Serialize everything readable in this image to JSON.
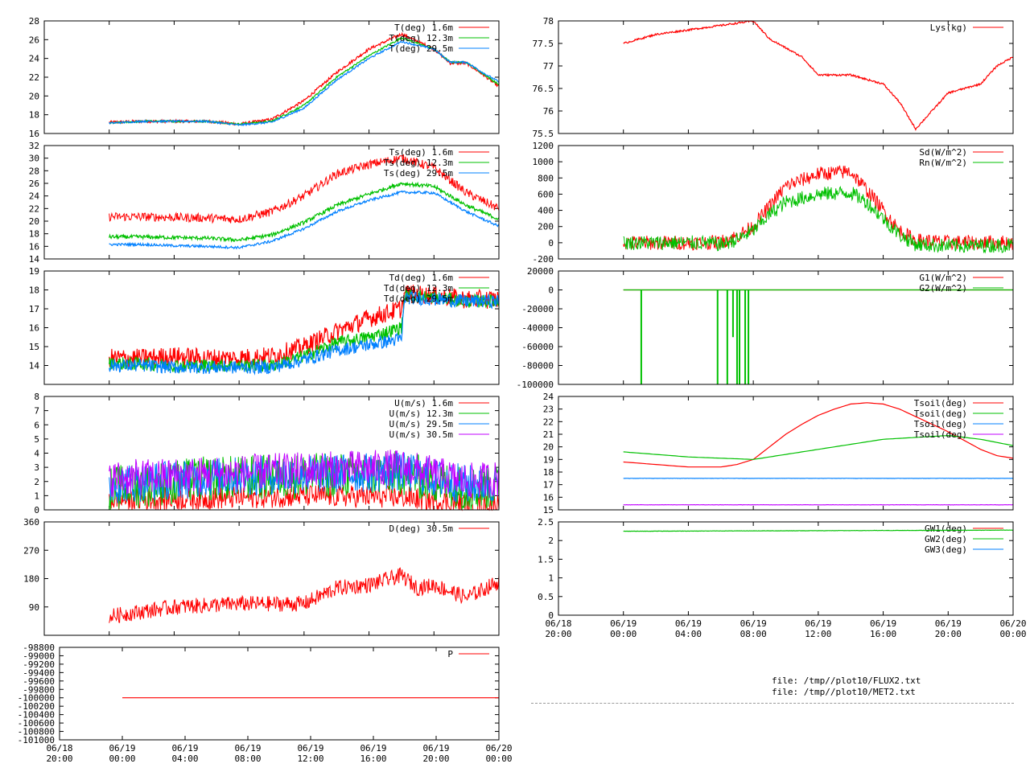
{
  "colors": {
    "red": "#ff0000",
    "green": "#00c000",
    "blue": "#0080ff",
    "purple": "#c000ff",
    "frame": "#000000"
  },
  "footer": {
    "line1": "file: /tmp//plot10/FLUX2.txt",
    "line2": "file: /tmp//plot10/MET2.txt"
  },
  "chart_data": [
    {
      "id": "air-temperature",
      "type": "line",
      "x_range_hours": [
        0,
        28
      ],
      "x_ticks": [],
      "ylim": [
        16,
        28
      ],
      "yticks": [
        "16",
        "18",
        "20",
        "22",
        "24",
        "26",
        "28"
      ],
      "series": [
        {
          "name": "T(deg)  1.6m",
          "color": "red",
          "noise": 0.15,
          "x": [
            4,
            6,
            8,
            10,
            12,
            14,
            16,
            18,
            20,
            22,
            24,
            25,
            26,
            27,
            28
          ],
          "y": [
            17.2,
            17.3,
            17.3,
            17.3,
            17.0,
            17.5,
            19.5,
            22.5,
            25.0,
            26.6,
            25.0,
            23.5,
            23.5,
            22.3,
            21.0
          ],
          "x2": [],
          "y2": []
        },
        {
          "name": "T(deg) 12.3m",
          "color": "green",
          "noise": 0.1,
          "x": [
            4,
            6,
            8,
            10,
            12,
            14,
            16,
            18,
            20,
            22,
            24,
            25,
            26,
            27,
            28
          ],
          "y": [
            17.1,
            17.3,
            17.3,
            17.3,
            17.0,
            17.3,
            19.0,
            22.0,
            24.3,
            26.2,
            25.0,
            23.6,
            23.6,
            22.4,
            21.2
          ],
          "x2": [],
          "y2": []
        },
        {
          "name": "T(deg) 29.5m",
          "color": "blue",
          "noise": 0.1,
          "x": [
            4,
            6,
            8,
            10,
            12,
            14,
            16,
            18,
            20,
            22,
            24,
            25,
            26,
            27,
            28
          ],
          "y": [
            17.1,
            17.3,
            17.3,
            17.3,
            16.9,
            17.2,
            18.7,
            21.7,
            24.0,
            25.8,
            25.0,
            23.6,
            23.6,
            22.5,
            21.5
          ],
          "x2": [],
          "y2": []
        }
      ]
    },
    {
      "id": "surface-temperature",
      "type": "line",
      "x_range_hours": [
        0,
        28
      ],
      "x_ticks": [],
      "ylim": [
        14,
        32
      ],
      "yticks": [
        "14",
        "16",
        "18",
        "20",
        "22",
        "24",
        "26",
        "28",
        "30",
        "32"
      ],
      "series": [
        {
          "name": "Ts(deg)  1.6m",
          "color": "red",
          "noise": 0.7,
          "x": [
            4,
            6,
            8,
            10,
            12,
            14,
            16,
            18,
            20,
            22,
            24,
            26,
            28
          ],
          "y": [
            20.7,
            20.7,
            20.6,
            20.5,
            20.3,
            21.5,
            24.0,
            27.5,
            29.0,
            30.0,
            28.5,
            24.5,
            22.0
          ],
          "x2": [],
          "y2": []
        },
        {
          "name": "Ts(deg) 12.3m",
          "color": "green",
          "noise": 0.3,
          "x": [
            4,
            6,
            8,
            10,
            12,
            14,
            16,
            18,
            20,
            22,
            24,
            26,
            28
          ],
          "y": [
            17.5,
            17.5,
            17.4,
            17.3,
            17.0,
            17.8,
            19.8,
            22.5,
            24.3,
            26.0,
            25.5,
            22.5,
            20.3
          ],
          "x2": [],
          "y2": []
        },
        {
          "name": "Ts(deg) 29.5m",
          "color": "blue",
          "noise": 0.2,
          "x": [
            4,
            6,
            8,
            10,
            12,
            14,
            16,
            18,
            20,
            22,
            24,
            26,
            28
          ],
          "y": [
            16.3,
            16.3,
            16.1,
            16.0,
            15.8,
            16.8,
            18.8,
            21.5,
            23.3,
            24.6,
            24.5,
            21.5,
            19.2
          ],
          "x2": [],
          "y2": []
        }
      ]
    },
    {
      "id": "dewpoint",
      "type": "line",
      "x_range_hours": [
        0,
        28
      ],
      "x_ticks": [],
      "ylim": [
        13,
        19
      ],
      "yticks": [
        "14",
        "15",
        "16",
        "17",
        "18",
        "19"
      ],
      "series": [
        {
          "name": "Td(deg)  1.6m",
          "color": "red",
          "noise": 0.5,
          "x": [
            4,
            6,
            8,
            10,
            12,
            14,
            16,
            18,
            20,
            22,
            22.2,
            24,
            26,
            28
          ],
          "y": [
            14.4,
            14.4,
            14.5,
            14.4,
            14.4,
            14.5,
            15.0,
            15.8,
            16.5,
            17.0,
            17.8,
            17.7,
            17.5,
            17.5
          ],
          "x2": [],
          "y2": []
        },
        {
          "name": "Td(deg) 12.3m",
          "color": "green",
          "noise": 0.35,
          "x": [
            4,
            6,
            8,
            10,
            12,
            14,
            16,
            18,
            20,
            22,
            22.2,
            24,
            26,
            28
          ],
          "y": [
            14.1,
            14.1,
            14.0,
            14.0,
            14.0,
            14.0,
            14.5,
            15.2,
            15.5,
            16.0,
            17.7,
            17.6,
            17.4,
            17.4
          ],
          "x2": [],
          "y2": []
        },
        {
          "name": "Td(deg) 29.5m",
          "color": "blue",
          "noise": 0.35,
          "x": [
            4,
            6,
            8,
            10,
            12,
            14,
            16,
            18,
            20,
            22,
            22.2,
            24,
            26,
            28
          ],
          "y": [
            14.0,
            14.0,
            13.9,
            13.9,
            13.9,
            13.9,
            14.3,
            14.8,
            15.1,
            15.4,
            17.6,
            17.5,
            17.4,
            17.4
          ],
          "x2": [],
          "y2": []
        }
      ]
    },
    {
      "id": "wind-speed",
      "type": "line",
      "x_range_hours": [
        0,
        28
      ],
      "x_ticks": [],
      "ylim": [
        0,
        8
      ],
      "yticks": [
        "0",
        "1",
        "2",
        "3",
        "4",
        "5",
        "6",
        "7",
        "8"
      ],
      "series": [
        {
          "name": "U(m/s)  1.6m",
          "color": "red",
          "noise": 0.8,
          "x": [
            4,
            10,
            16,
            22,
            26,
            28
          ],
          "y": [
            0.7,
            0.8,
            1.0,
            0.9,
            0.4,
            0.4
          ],
          "x2": [],
          "y2": []
        },
        {
          "name": "U(m/s) 12.3m",
          "color": "green",
          "noise": 1.6,
          "x": [
            4,
            10,
            16,
            22,
            26,
            28
          ],
          "y": [
            1.5,
            2.2,
            2.4,
            2.6,
            1.5,
            1.6
          ],
          "x2": [],
          "y2": []
        },
        {
          "name": "U(m/s) 29.5m",
          "color": "blue",
          "noise": 1.4,
          "x": [
            4,
            10,
            16,
            22,
            26,
            28
          ],
          "y": [
            1.8,
            2.3,
            2.5,
            2.7,
            1.8,
            1.9
          ],
          "x2": [],
          "y2": []
        },
        {
          "name": "U(m/s) 30.5m",
          "color": "purple",
          "noise": 1.3,
          "x": [
            4,
            10,
            16,
            22,
            26,
            28
          ],
          "y": [
            2.2,
            2.5,
            2.8,
            3.0,
            2.0,
            2.2
          ],
          "x2": [],
          "y2": []
        }
      ]
    },
    {
      "id": "wind-direction",
      "type": "line",
      "x_range_hours": [
        0,
        28
      ],
      "x_ticks": [],
      "ylim": [
        0,
        360
      ],
      "yticks": [
        "90",
        "180",
        "270",
        "360"
      ],
      "series": [
        {
          "name": "D(deg)  30.5m",
          "color": "red",
          "noise": 25,
          "x": [
            4,
            8,
            12,
            16,
            18,
            20,
            22,
            23,
            24,
            26,
            28
          ],
          "y": [
            60,
            90,
            100,
            100,
            150,
            160,
            190,
            150,
            160,
            120,
            170
          ],
          "x2": [],
          "y2": []
        }
      ]
    },
    {
      "id": "pressure",
      "type": "line",
      "x_range_hours": [
        0,
        28
      ],
      "x_ticks": [
        "06/18|20:00",
        "06/19|00:00",
        "06/19|04:00",
        "06/19|08:00",
        "06/19|12:00",
        "06/19|16:00",
        "06/19|20:00",
        "06/20|00:00"
      ],
      "ylim": [
        -101000,
        -98800
      ],
      "yticks": [
        "-98800",
        "-99000",
        "-99200",
        "-99400",
        "-99600",
        "-99800",
        "-100000",
        "-100200",
        "-100400",
        "-100600",
        "-100800",
        "-101000"
      ],
      "series": [
        {
          "name": "P",
          "color": "red",
          "noise": 0,
          "x": [
            4,
            28
          ],
          "y": [
            -100000,
            -100000
          ],
          "x2": [],
          "y2": []
        }
      ]
    },
    {
      "id": "lysimeter",
      "type": "line",
      "x_range_hours": [
        0,
        28
      ],
      "x_ticks": [],
      "ylim": [
        75.5,
        78
      ],
      "yticks": [
        "75.5",
        "76",
        "76.5",
        "77",
        "77.5",
        "78"
      ],
      "series": [
        {
          "name": "Lys(kg)",
          "color": "red",
          "noise": 0.02,
          "x": [
            4,
            6,
            8,
            10,
            12,
            13,
            14,
            15,
            16,
            18,
            20,
            21,
            22,
            23,
            24,
            26,
            27,
            28
          ],
          "y": [
            77.5,
            77.7,
            77.8,
            77.9,
            78.0,
            77.6,
            77.4,
            77.2,
            76.8,
            76.8,
            76.6,
            76.2,
            75.6,
            76.0,
            76.4,
            76.6,
            77.0,
            77.2
          ],
          "x2": [],
          "y2": []
        }
      ]
    },
    {
      "id": "radiation",
      "type": "line",
      "x_range_hours": [
        0,
        28
      ],
      "x_ticks": [],
      "ylim": [
        -200,
        1200
      ],
      "yticks": [
        "-200",
        "0",
        "200",
        "400",
        "600",
        "800",
        "1000",
        "1200"
      ],
      "series": [
        {
          "name": "Sd(W/m^2)",
          "color": "red",
          "noise": 90,
          "x": [
            4,
            6,
            8,
            9,
            10,
            11,
            12,
            13,
            14,
            16,
            18,
            19,
            20,
            21,
            22,
            24,
            28
          ],
          "y": [
            0,
            0,
            0,
            0,
            10,
            80,
            200,
            450,
            700,
            850,
            880,
            650,
            400,
            150,
            30,
            5,
            5
          ],
          "x2": [],
          "y2": []
        },
        {
          "name": "Rn(W/m^2)",
          "color": "green",
          "noise": 90,
          "x": [
            4,
            6,
            8,
            9,
            10,
            11,
            12,
            13,
            14,
            16,
            18,
            19,
            20,
            21,
            22,
            24,
            28
          ],
          "y": [
            0,
            0,
            0,
            0,
            -20,
            40,
            150,
            350,
            500,
            600,
            620,
            500,
            300,
            100,
            -20,
            -40,
            -30
          ],
          "x2": [],
          "y2": []
        }
      ]
    },
    {
      "id": "soil-heat-flux",
      "type": "line",
      "x_range_hours": [
        0,
        28
      ],
      "x_ticks": [],
      "ylim": [
        -100000,
        20000
      ],
      "yticks": [
        "-100000",
        "-80000",
        "-60000",
        "-40000",
        "-20000",
        "0",
        "20000"
      ],
      "series": [
        {
          "name": "G1(W/m^2)",
          "color": "red",
          "noise": 0,
          "x": [
            4,
            28
          ],
          "y": [
            0,
            0
          ],
          "x2": [],
          "y2": []
        },
        {
          "name": "G2(W/m^2)",
          "color": "green",
          "noise": 0,
          "x": [
            4,
            28
          ],
          "y": [
            0,
            0
          ],
          "x2": [
            5.1,
            9.8,
            10.4,
            10.75,
            11.0,
            11.15,
            11.5,
            11.7
          ],
          "y2": [
            -100000,
            -100000,
            -100000,
            -50000,
            -100000,
            -100000,
            -100000,
            -100000
          ]
        }
      ]
    },
    {
      "id": "soil-temperature",
      "type": "line",
      "x_range_hours": [
        0,
        28
      ],
      "x_ticks": [],
      "ylim": [
        15,
        24
      ],
      "yticks": [
        "15",
        "16",
        "17",
        "18",
        "19",
        "20",
        "21",
        "22",
        "23",
        "24"
      ],
      "series": [
        {
          "name": "Tsoil(deg)",
          "color": "red",
          "noise": 0,
          "x": [
            4,
            6,
            8,
            10,
            11,
            12,
            13,
            14,
            15,
            16,
            17,
            18,
            19,
            20,
            21,
            22,
            23,
            24,
            25,
            26,
            27,
            28
          ],
          "y": [
            18.8,
            18.6,
            18.4,
            18.4,
            18.6,
            19.0,
            20.0,
            21.0,
            21.8,
            22.5,
            23.0,
            23.4,
            23.5,
            23.4,
            23.0,
            22.4,
            21.8,
            21.2,
            20.5,
            19.8,
            19.3,
            19.1
          ],
          "x2": [],
          "y2": []
        },
        {
          "name": "Tsoil(deg)",
          "color": "green",
          "noise": 0,
          "x": [
            4,
            8,
            12,
            16,
            20,
            24,
            26,
            28
          ],
          "y": [
            19.6,
            19.2,
            19.0,
            19.8,
            20.6,
            20.9,
            20.6,
            20.1
          ],
          "x2": [],
          "y2": []
        },
        {
          "name": "Tsoil(deg)",
          "color": "blue",
          "noise": 0.01,
          "x": [
            4,
            28
          ],
          "y": [
            17.5,
            17.5
          ],
          "x2": [],
          "y2": []
        },
        {
          "name": "Tsoil(deg)",
          "color": "purple",
          "noise": 0.01,
          "x": [
            4,
            28
          ],
          "y": [
            15.4,
            15.4
          ],
          "x2": [],
          "y2": []
        }
      ]
    },
    {
      "id": "groundwater",
      "type": "line",
      "x_range_hours": [
        0,
        28
      ],
      "x_ticks": [
        "06/18|20:00",
        "06/19|00:00",
        "06/19|04:00",
        "06/19|08:00",
        "06/19|12:00",
        "06/19|16:00",
        "06/19|20:00",
        "06/20|00:00"
      ],
      "ylim": [
        0,
        2.5
      ],
      "yticks": [
        "0",
        "0.5",
        "1",
        "1.5",
        "2",
        "2.5"
      ],
      "series": [
        {
          "name": "GW1(deg)",
          "color": "red",
          "noise": 0,
          "x": [],
          "y": [],
          "x2": [],
          "y2": []
        },
        {
          "name": "GW2(deg)",
          "color": "green",
          "noise": 0.004,
          "x": [
            4,
            28
          ],
          "y": [
            2.25,
            2.28
          ],
          "x2": [],
          "y2": []
        },
        {
          "name": "GW3(deg)",
          "color": "blue",
          "noise": 0,
          "x": [],
          "y": [],
          "x2": [],
          "y2": []
        }
      ]
    }
  ]
}
